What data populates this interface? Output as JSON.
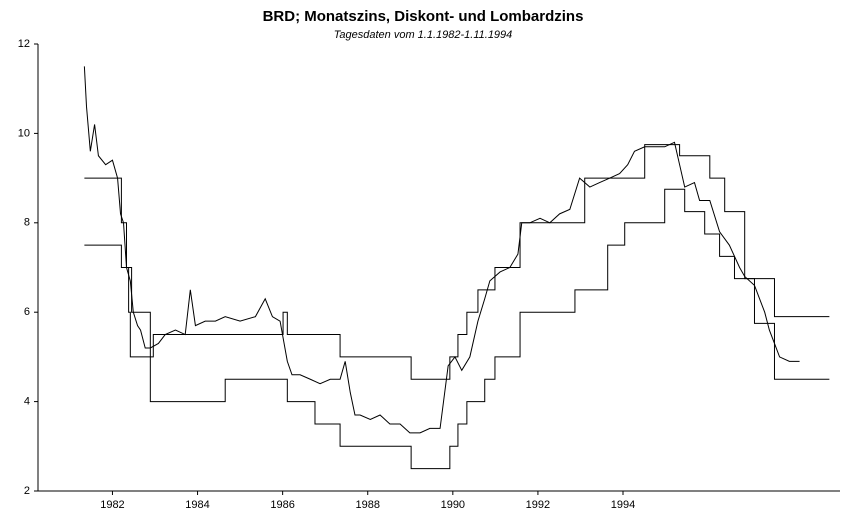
{
  "chart_data": {
    "type": "line",
    "title": "BRD; Monatszins, Diskont- und Lombardzins",
    "subtitle": "Tagesdaten vom 1.1.1982-1.11.1994",
    "xlim": [
      1980.25,
      1999.1
    ],
    "xticks": [
      1982,
      1984,
      1986,
      1988,
      1990,
      1992,
      1994
    ],
    "ylim": [
      2,
      12
    ],
    "yticks": [
      2,
      4,
      6,
      8,
      10,
      12
    ],
    "grid": false,
    "series": [
      {
        "color": "#000000",
        "step": false,
        "x": [
          1981.34,
          1981.39,
          1981.48,
          1981.58,
          1981.67,
          1981.84,
          1982.0,
          1982.12,
          1982.19,
          1982.26,
          1982.33,
          1982.42,
          1982.49,
          1982.59,
          1982.66,
          1982.77,
          1982.89,
          1983.08,
          1983.24,
          1983.48,
          1983.71,
          1983.83,
          1983.95,
          1984.18,
          1984.42,
          1984.65,
          1985.0,
          1985.36,
          1985.59,
          1985.76,
          1985.94,
          1986.11,
          1986.22,
          1986.41,
          1986.65,
          1986.88,
          1987.12,
          1987.35,
          1987.47,
          1987.59,
          1987.7,
          1987.82,
          1988.06,
          1988.29,
          1988.52,
          1988.76,
          1988.99,
          1989.23,
          1989.46,
          1989.7,
          1989.89,
          1990.05,
          1990.21,
          1990.4,
          1990.59,
          1990.75,
          1990.87,
          1991.11,
          1991.34,
          1991.53,
          1991.62,
          1991.81,
          1992.05,
          1992.28,
          1992.51,
          1992.75,
          1992.98,
          1993.22,
          1993.45,
          1993.69,
          1993.92,
          1994.11,
          1994.27,
          1994.51,
          1994.74,
          1994.98,
          1995.21,
          1995.33,
          1995.45,
          1995.68,
          1995.8,
          1996.04,
          1996.27,
          1996.5,
          1996.74,
          1996.86,
          1997.09,
          1997.21,
          1997.33,
          1997.44,
          1997.56,
          1997.68,
          1997.91,
          1998.15
        ],
        "values": [
          11.5,
          10.6,
          9.6,
          10.2,
          9.5,
          9.3,
          9.4,
          9.0,
          8.2,
          8.0,
          7.0,
          6.7,
          6.0,
          5.7,
          5.6,
          5.2,
          5.2,
          5.3,
          5.5,
          5.6,
          5.5,
          6.5,
          5.7,
          5.8,
          5.8,
          5.9,
          5.8,
          5.9,
          6.3,
          5.9,
          5.8,
          4.9,
          4.6,
          4.6,
          4.5,
          4.4,
          4.5,
          4.5,
          4.9,
          4.2,
          3.7,
          3.7,
          3.6,
          3.7,
          3.5,
          3.5,
          3.3,
          3.3,
          3.4,
          3.4,
          4.8,
          5.0,
          4.7,
          5.0,
          5.8,
          6.3,
          6.7,
          6.9,
          7.0,
          7.3,
          8.0,
          8.0,
          8.1,
          8.0,
          8.2,
          8.3,
          9.0,
          8.8,
          8.9,
          9.0,
          9.1,
          9.3,
          9.6,
          9.7,
          9.7,
          9.7,
          9.8,
          9.3,
          8.8,
          8.9,
          8.5,
          8.5,
          7.8,
          7.5,
          7.0,
          6.8,
          6.6,
          6.3,
          6.0,
          5.6,
          5.3,
          5.0,
          4.9,
          4.9
        ]
      },
      {
        "color": "#000000",
        "step": true,
        "x": [
          1981.34,
          1982.21,
          1982.33,
          1982.45,
          1982.89,
          1982.96,
          1986.01,
          1986.11,
          1987.35,
          1989.02,
          1989.93,
          1990.12,
          1990.33,
          1990.59,
          1990.99,
          1991.58,
          1993.1,
          1994.51,
          1995.33,
          1996.04,
          1996.39,
          1996.86,
          1997.56,
          1998.85
        ],
        "values": [
          9,
          8,
          7,
          6,
          5,
          5.5,
          6,
          5.5,
          5,
          4.5,
          5,
          5.5,
          6,
          6.5,
          7,
          8,
          9,
          9.75,
          9.5,
          9,
          8.25,
          6.75,
          5.9,
          5.9
        ]
      },
      {
        "color": "#000000",
        "step": true,
        "x": [
          1981.34,
          1982.21,
          1982.38,
          1982.42,
          1982.89,
          1984.65,
          1986.11,
          1986.76,
          1987.35,
          1989.02,
          1989.93,
          1990.12,
          1990.33,
          1990.75,
          1990.99,
          1991.58,
          1992.87,
          1993.64,
          1994.04,
          1994.98,
          1995.45,
          1995.92,
          1996.27,
          1996.62,
          1997.09,
          1997.56,
          1998.85
        ],
        "values": [
          7.5,
          7,
          6,
          5,
          4,
          4.5,
          4,
          3.5,
          3,
          2.5,
          3,
          3.5,
          4,
          4.5,
          5,
          6,
          6.5,
          7.5,
          8,
          8.75,
          8.25,
          7.75,
          7.25,
          6.75,
          5.75,
          4.5,
          4.5
        ]
      }
    ]
  }
}
